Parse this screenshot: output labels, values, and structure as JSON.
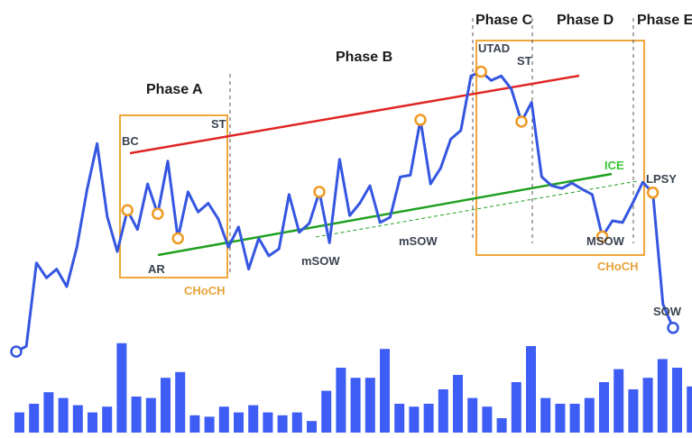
{
  "chart_data": {
    "type": "line",
    "title": "",
    "phases": [
      "Phase A",
      "Phase B",
      "Phase C",
      "Phase D",
      "Phase E"
    ],
    "series": [
      {
        "values": [
          101,
          107,
          202,
          185,
          195,
          175,
          220,
          285,
          338,
          255,
          215,
          262,
          240,
          292,
          258,
          318,
          230,
          283,
          260,
          270,
          252,
          220,
          243,
          195,
          230,
          210,
          218,
          280,
          237,
          247,
          283,
          225,
          320,
          256,
          270,
          290,
          248,
          254,
          300,
          302,
          365,
          292,
          310,
          343,
          353,
          415,
          420,
          410,
          415,
          400,
          363,
          385,
          300,
          290,
          287,
          293,
          286,
          280,
          232,
          250,
          248,
          270,
          294,
          282,
          155,
          128
        ]
      }
    ],
    "volume": [
      14,
      20,
      28,
      24,
      19,
      14,
      18,
      62,
      25,
      24,
      38,
      42,
      12,
      11,
      18,
      14,
      19,
      14,
      12,
      14,
      8,
      29,
      45,
      38,
      38,
      58,
      20,
      18,
      20,
      30,
      40,
      24,
      18,
      10,
      35,
      60,
      24,
      20,
      20,
      24,
      35,
      44,
      30,
      38,
      51,
      45,
      32,
      60,
      44,
      14,
      24,
      24,
      22,
      24,
      39,
      28,
      33,
      50,
      43,
      45,
      38,
      23,
      17,
      18,
      28,
      41
    ],
    "ylim": [
      60,
      440
    ],
    "annotations": {
      "bc": "BC",
      "ar": "AR",
      "st1": "ST",
      "msow1": "mSOW",
      "msow2": "mSOW",
      "utad": "UTAD",
      "st2": "ST",
      "ice": "ICE",
      "msow3": "MSOW",
      "lpsy": "LPSY",
      "sow": "SOW",
      "choch1": "CHoCH",
      "choch2": "CHoCH"
    },
    "colors": {
      "line": "#3556e0",
      "volume": "#3d5df5",
      "resistance": "#e02424",
      "support": "#20a020",
      "box": "#f0a63a",
      "marker_fill": "#ffffff",
      "marker_stroke": "#ef9a22",
      "ice": "#35c435"
    }
  }
}
